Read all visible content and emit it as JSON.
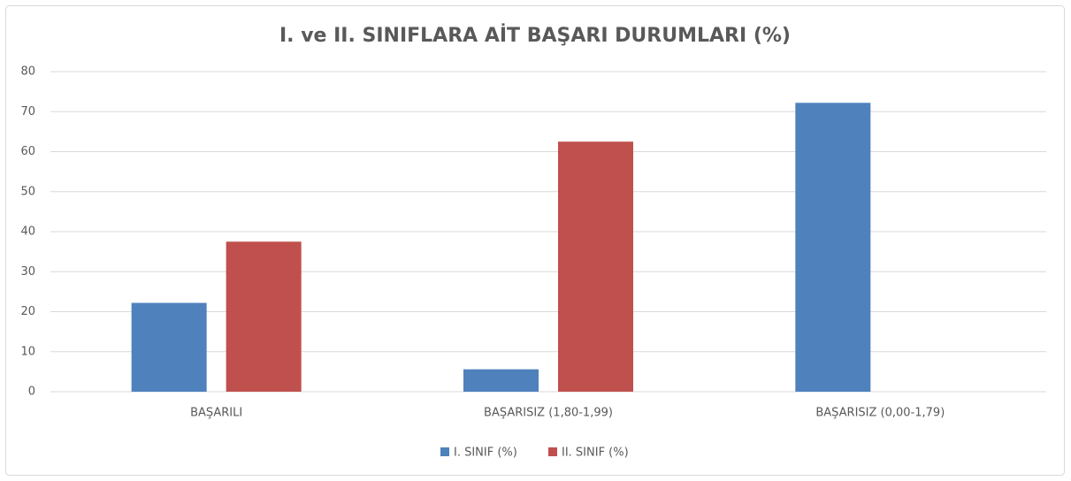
{
  "chart_data": {
    "type": "bar",
    "title": "I. ve II. SINIFLARA AİT BAŞARI DURUMLARI (%)",
    "categories": [
      "BAŞARILI",
      "BAŞARISIZ (1,80-1,99)",
      "BAŞARISIZ (0,00-1,79)"
    ],
    "series": [
      {
        "name": "I. SINIF (%)",
        "color": "#4f81bd",
        "values": [
          22.2,
          5.6,
          72.2
        ]
      },
      {
        "name": "II. SINIF (%)",
        "color": "#c0504d",
        "values": [
          37.5,
          62.5,
          0
        ]
      }
    ],
    "ylim": [
      0,
      80
    ],
    "yticks": [
      0,
      10,
      20,
      30,
      40,
      50,
      60,
      70,
      80
    ],
    "grid": true,
    "legend": "bottom"
  }
}
